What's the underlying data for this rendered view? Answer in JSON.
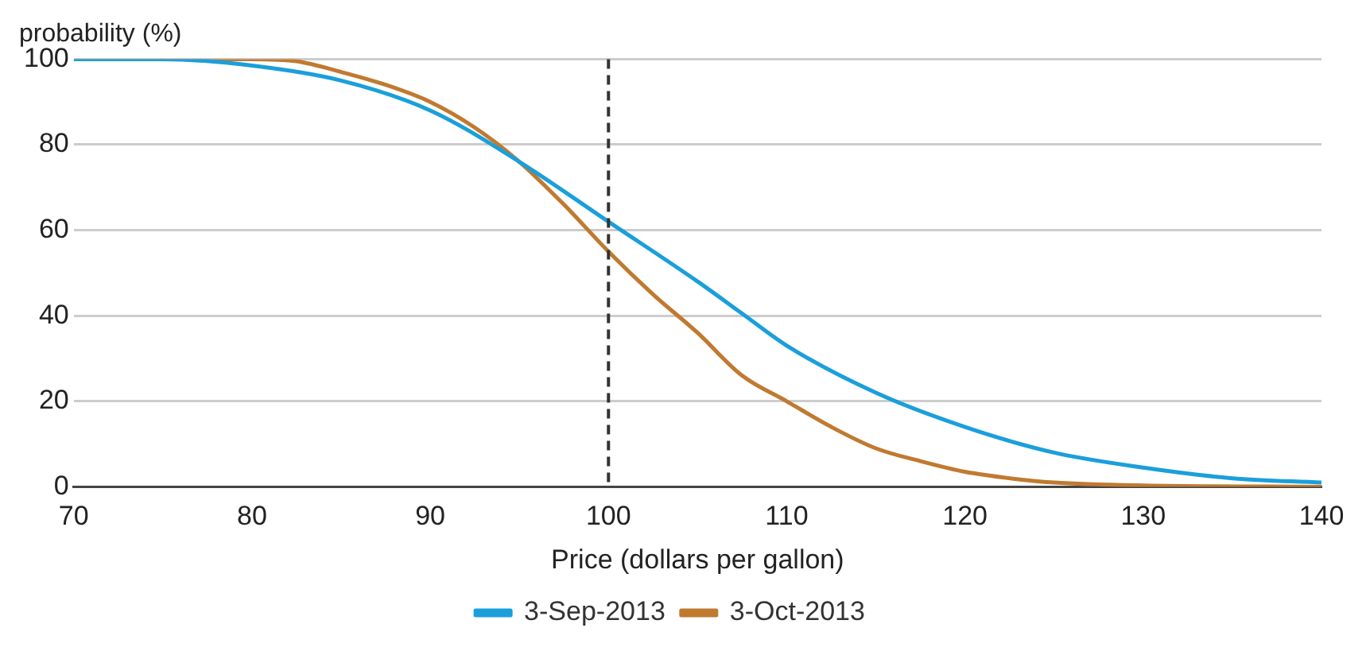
{
  "chart_data": {
    "type": "line",
    "ylabel": "probability (%)",
    "xlabel": "Price (dollars per gallon)",
    "xlim": [
      70,
      140
    ],
    "xticks": [
      70,
      80,
      90,
      100,
      110,
      120,
      130,
      140
    ],
    "ylim": [
      0,
      100
    ],
    "yticks": [
      0,
      20,
      40,
      60,
      80,
      100
    ],
    "grid": "y",
    "legend": "bottom",
    "marker": "none",
    "line_style": "solid",
    "ref_lines": [
      {
        "axis": "x",
        "value": 100,
        "color": "#333333",
        "line_style": "dashed"
      }
    ],
    "series": [
      {
        "name": "3-Sep-2013",
        "color": "#1a9fdb",
        "x": [
          70,
          75,
          80,
          85,
          90,
          95,
          100,
          105,
          107.5,
          110,
          115,
          120,
          125,
          130,
          135,
          140
        ],
        "values": [
          100,
          100,
          98.5,
          95,
          88,
          76,
          62,
          48,
          40.5,
          33,
          22,
          14,
          8,
          4.5,
          2,
          1
        ]
      },
      {
        "name": "3-Oct-2013",
        "color": "#c07a30",
        "x": [
          70,
          80,
          82.5,
          85,
          87.5,
          90,
          92.5,
          95,
          97.5,
          100,
          102.5,
          105,
          107.5,
          110,
          112.5,
          115,
          117.5,
          120,
          122.5,
          125,
          130,
          140
        ],
        "values": [
          100,
          100,
          99.5,
          97,
          94,
          90,
          84,
          76,
          66,
          55,
          45,
          36,
          26,
          20,
          14,
          9,
          6,
          3.5,
          2,
          1,
          0.3,
          0
        ]
      }
    ]
  }
}
